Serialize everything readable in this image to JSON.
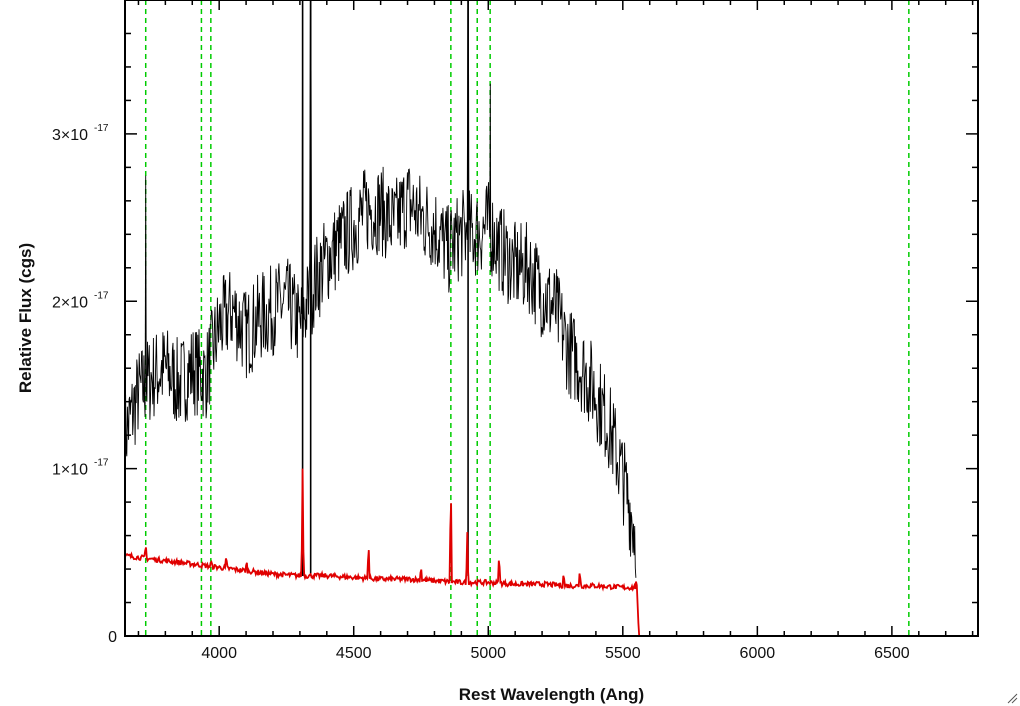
{
  "chart_data": {
    "type": "line",
    "title": "",
    "xlabel": "Rest Wavelength (Ang)",
    "ylabel": "Relative Flux (cgs)",
    "xlim": [
      3650,
      6820
    ],
    "ylim": [
      0,
      3.8e-17
    ],
    "x_ticks": [
      4000,
      4500,
      5000,
      5500,
      6000,
      6500
    ],
    "y_ticks": [
      {
        "value": 0,
        "label": "0"
      },
      {
        "value": 1e-17,
        "mantissa": "1×10",
        "exponent": "-17"
      },
      {
        "value": 2e-17,
        "mantissa": "2×10",
        "exponent": "-17"
      },
      {
        "value": 3e-17,
        "mantissa": "3×10",
        "exponent": "-17"
      }
    ],
    "grid": false,
    "legend": "none",
    "series": [
      {
        "color": "#000000",
        "style": "noisy spectrum",
        "x": [
          3650,
          3700,
          3750,
          3800,
          3850,
          3900,
          3950,
          4000,
          4050,
          4100,
          4150,
          4200,
          4250,
          4300,
          4350,
          4400,
          4450,
          4500,
          4550,
          4600,
          4650,
          4700,
          4750,
          4800,
          4850,
          4900,
          4950,
          5000,
          5050,
          5100,
          5150,
          5200,
          5250,
          5300,
          5350,
          5400,
          5450,
          5500,
          5550
        ],
        "y": [
          1.2e-17,
          1.45e-17,
          1.55e-17,
          1.6e-17,
          1.5e-17,
          1.6e-17,
          1.55e-17,
          1.85e-17,
          1.95e-17,
          1.8e-17,
          1.9e-17,
          1.95e-17,
          2e-17,
          1.85e-17,
          2.1e-17,
          2.25e-17,
          2.35e-17,
          2.45e-17,
          2.55e-17,
          2.55e-17,
          2.45e-17,
          2.6e-17,
          2.5e-17,
          2.45e-17,
          2.3e-17,
          2.4e-17,
          2.4e-17,
          2.45e-17,
          2.3e-17,
          2.2e-17,
          2.2e-17,
          2.05e-17,
          1.95e-17,
          1.7e-17,
          1.6e-17,
          1.45e-17,
          1.25e-17,
          9.5e-18,
          6e-18
        ],
        "spikes": [
          {
            "x": 3727,
            "y": 2.75e-17
          },
          {
            "x": 4310,
            "y": 3.8e-17
          },
          {
            "x": 4340,
            "y": 3.8e-17
          },
          {
            "x": 4925,
            "y": 3.8e-17
          },
          {
            "x": 5007,
            "y": 3.3e-17
          }
        ]
      },
      {
        "color": "#e00000",
        "style": "model spectrum",
        "x": [
          3650,
          3700,
          3750,
          3800,
          3850,
          3900,
          4000,
          4100,
          4200,
          4300,
          4400,
          4500,
          4600,
          4700,
          4800,
          4900,
          5000,
          5100,
          5200,
          5300,
          5400,
          5500,
          5548,
          5550,
          5560,
          6820
        ],
        "y": [
          4.8e-18,
          4.7e-18,
          4.6e-18,
          4.5e-18,
          4.4e-18,
          4.3e-18,
          4.1e-18,
          3.9e-18,
          3.7e-18,
          3.6e-18,
          3.6e-18,
          3.5e-18,
          3.4e-18,
          3.4e-18,
          3.3e-18,
          3.2e-18,
          3.2e-18,
          3.1e-18,
          3.1e-18,
          3e-18,
          3e-18,
          2.9e-18,
          2.9e-18,
          3.8e-18,
          0.0,
          0.0
        ],
        "lines": [
          {
            "x": 3727,
            "y": 5.5e-18
          },
          {
            "x": 3970,
            "y": 4.5e-18
          },
          {
            "x": 4026,
            "y": 4.8e-18
          },
          {
            "x": 4102,
            "y": 4.5e-18
          },
          {
            "x": 4310,
            "y": 1e-17
          },
          {
            "x": 4555,
            "y": 5.7e-18
          },
          {
            "x": 4750,
            "y": 4.2e-18
          },
          {
            "x": 4861,
            "y": 9.5e-18
          },
          {
            "x": 4922,
            "y": 6.2e-18
          },
          {
            "x": 5040,
            "y": 5e-18
          },
          {
            "x": 5280,
            "y": 3.8e-18
          },
          {
            "x": 5340,
            "y": 4e-18
          }
        ]
      }
    ],
    "reference_lines": {
      "color": "#00cc00",
      "style": "dashed",
      "x": [
        3727,
        3934,
        3969,
        4861,
        4959,
        5007,
        6563
      ]
    }
  }
}
